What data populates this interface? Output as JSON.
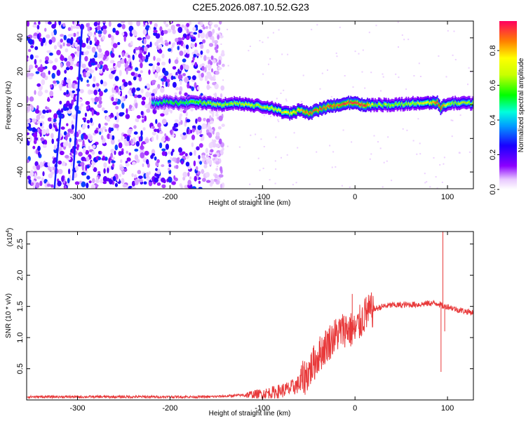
{
  "title": "C2E5.2026.087.10.52.G23",
  "chart_data": [
    {
      "type": "heatmap",
      "xlabel": "Height of straight line (km)",
      "ylabel": "Frequency (Hz)",
      "xlim": [
        -355,
        128
      ],
      "ylim": [
        -50,
        50
      ],
      "x_ticks": [
        "-300",
        "-200",
        "-100",
        "0",
        "100"
      ],
      "x_tick_values": [
        -300,
        -200,
        -100,
        0,
        100
      ],
      "y_ticks": [
        "-40",
        "-20",
        "0",
        "20",
        "40"
      ],
      "y_tick_values": [
        -40,
        -20,
        0,
        20,
        40
      ],
      "colorbar": {
        "label": "Normalized spectral amplitude",
        "range": [
          0,
          0.97
        ],
        "ticks": [
          "0.0",
          "0.2",
          "0.4",
          "0.6",
          "0.8"
        ],
        "tick_values": [
          0,
          0.2,
          0.4,
          0.6,
          0.8
        ]
      },
      "noise_region_x": [
        -355,
        -165
      ],
      "signal_ridge": {
        "x": [
          -220,
          -205,
          -190,
          -175,
          -160,
          -145,
          -130,
          -115,
          -100,
          -90,
          -80,
          -70,
          -60,
          -50,
          -40,
          -30,
          -20,
          -10,
          0,
          10,
          20,
          40,
          60,
          80,
          88,
          92,
          100,
          128
        ],
        "freq": [
          1,
          2,
          1,
          2,
          1,
          0,
          1,
          0,
          -1,
          -2,
          -4,
          -5,
          -3,
          -5,
          -3,
          -1,
          0,
          1,
          1,
          0,
          0,
          0,
          1,
          1,
          2,
          -2,
          1,
          1
        ],
        "amplitude": [
          0.45,
          0.5,
          0.5,
          0.55,
          0.6,
          0.6,
          0.6,
          0.65,
          0.6,
          0.65,
          0.7,
          0.75,
          0.75,
          0.85,
          0.85,
          0.9,
          0.85,
          0.9,
          0.9,
          0.95,
          0.6,
          0.6,
          0.6,
          0.7,
          0.9,
          0.9,
          0.6,
          0.6
        ]
      }
    },
    {
      "type": "line",
      "xlabel": "Height of straight line (km)",
      "ylabel": "SNR (10 * v/v)",
      "y_multiplier": "(x10",
      "y_multiplier_exp": "4",
      "y_multiplier_close": ")",
      "xlim": [
        -355,
        128
      ],
      "ylim": [
        0,
        2.7
      ],
      "x_ticks": [
        "-300",
        "-200",
        "-100",
        "0",
        "100"
      ],
      "x_tick_values": [
        -300,
        -200,
        -100,
        0,
        100
      ],
      "y_ticks": [
        "0.5",
        "1.0",
        "1.5",
        "2.0",
        "2.5"
      ],
      "y_tick_values": [
        0.5,
        1.0,
        1.5,
        2.0,
        2.5
      ],
      "series": [
        {
          "color": "#e8393a",
          "x": [
            -355,
            -300,
            -250,
            -200,
            -160,
            -140,
            -120,
            -100,
            -85,
            -70,
            -60,
            -50,
            -40,
            -30,
            -20,
            -10,
            0,
            10,
            20,
            30,
            40,
            50,
            60,
            70,
            80,
            85,
            90,
            95,
            100,
            110,
            120,
            128
          ],
          "y": [
            0.05,
            0.05,
            0.05,
            0.05,
            0.05,
            0.06,
            0.08,
            0.1,
            0.13,
            0.18,
            0.26,
            0.45,
            0.7,
            0.9,
            1.05,
            1.15,
            1.1,
            1.35,
            1.45,
            1.5,
            1.52,
            1.52,
            1.53,
            1.53,
            1.55,
            1.55,
            1.55,
            1.5,
            1.5,
            1.45,
            1.42,
            1.4
          ]
        }
      ],
      "spikes": {
        "x": [
          -3,
          12,
          93,
          95,
          97
        ],
        "y": [
          1.7,
          1.65,
          0.45,
          2.7,
          1.1
        ]
      }
    }
  ]
}
